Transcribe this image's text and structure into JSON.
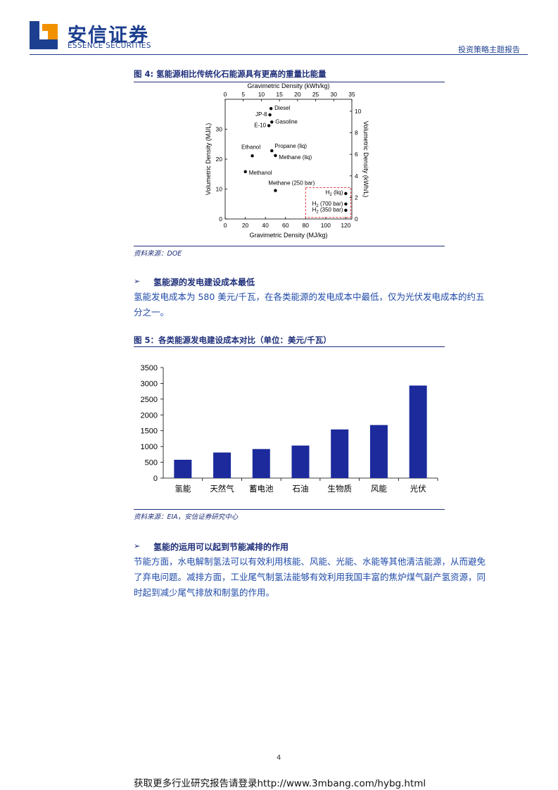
{
  "header": {
    "brand_cn": "安信证券",
    "brand_en": "ESSENCE SECURITIES",
    "report_type": "投资策略主题报告",
    "brand_color": "#1d3f8f",
    "logo_accent": "#f29100"
  },
  "figure4": {
    "title": "图 4: 氢能源相比传统化石能源具有更高的重量比能量",
    "source": "资料来源：DOE",
    "chart_data": {
      "type": "scatter",
      "title": "",
      "xlabel_top": "Gravimetric Density (kWh/kg)",
      "xlabel_bottom": "Gravimetric Density (MJ/kg)",
      "ylabel_left": "Volumetric Density (MJ/L)",
      "ylabel_right": "Volumetric Density (kWh/L)",
      "xlim": [
        0,
        126
      ],
      "ylim": [
        0,
        40
      ],
      "top_ticks": [
        "0",
        "5",
        "10",
        "15",
        "20",
        "25",
        "30",
        "35"
      ],
      "bottom_ticks": [
        "0",
        "20",
        "40",
        "60",
        "80",
        "100",
        "120"
      ],
      "left_ticks": [
        "0",
        "10",
        "20",
        "30"
      ],
      "right_ticks": [
        "0",
        "2",
        "4",
        "6",
        "8",
        "10"
      ],
      "points": [
        {
          "label": "Diesel",
          "x": 45.6,
          "y": 36.9
        },
        {
          "label": "JP-8",
          "x": 44.5,
          "y": 34.8
        },
        {
          "label": "Gasoline",
          "x": 46.4,
          "y": 32.4
        },
        {
          "label": "E-10",
          "x": 43.5,
          "y": 31.2
        },
        {
          "label": "Ethanol",
          "x": 27.0,
          "y": 21.1
        },
        {
          "label": "Propane (liq)",
          "x": 46.4,
          "y": 22.8
        },
        {
          "label": "Methane (liq)",
          "x": 50.0,
          "y": 21.2
        },
        {
          "label": "Methanol",
          "x": 20.1,
          "y": 15.8
        },
        {
          "label": "Methane (250 bar)",
          "x": 50.0,
          "y": 9.5
        },
        {
          "label": "H2 (liq)",
          "x": 120.0,
          "y": 8.5
        },
        {
          "label": "H2 (700 bar)",
          "x": 120.0,
          "y": 5.0
        },
        {
          "label": "H2 (350 bar)",
          "x": 120.0,
          "y": 2.9
        }
      ],
      "highlight_box_color": "#e0373e"
    }
  },
  "section1": {
    "heading": "氢能源的发电建设成本最低",
    "body_line1": "氢能发电成本为 580 美元/千瓦，在各类能源的发电成本中最低，仅为光伏发电成本的约五",
    "body_line2": "分之一。"
  },
  "figure5": {
    "title": "图 5：各类能源发电建设成本对比（单位：美元/千瓦）",
    "source": "资料来源：EIA，安信证券研究中心",
    "chart_data": {
      "type": "bar",
      "title": "",
      "categories": [
        "氢能",
        "天然气",
        "蓄电池",
        "石油",
        "生物质",
        "风能",
        "光伏"
      ],
      "values": [
        580,
        810,
        920,
        1030,
        1540,
        1680,
        2930
      ],
      "y_ticks": [
        "0",
        "500",
        "1000",
        "1500",
        "2000",
        "2500",
        "3000",
        "3500"
      ],
      "ylim": [
        0,
        3500
      ],
      "bar_color": "#1c2a9c",
      "grid": false
    }
  },
  "section2": {
    "heading": "氢能的运用可以起到节能减排的作用",
    "body_line1": "节能方面，水电解制氢法可以有效利用核能、风能、光能、水能等其他清洁能源，从而避免",
    "body_line2": "了弃电问题。减排方面，工业尾气制氢法能够有效利用我国丰富的焦炉煤气副产氢资源，同",
    "body_line3": "时起到减少尾气排放和制氢的作用。"
  },
  "page_number": "4",
  "footer": "获取更多行业研究报告请登录http://www.3mbang.com/hybg.html"
}
